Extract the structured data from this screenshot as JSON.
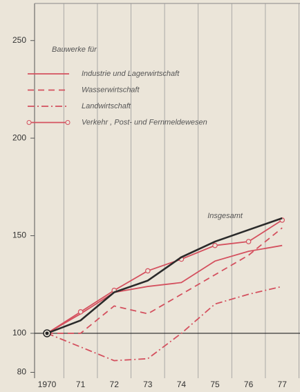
{
  "chart_data": {
    "type": "line",
    "legend_title": "Bauwerke für",
    "categories": [
      "1970",
      "71",
      "72",
      "73",
      "74",
      "75",
      "76",
      "77"
    ],
    "series": [
      {
        "name": "Industrie und Lagerwirtschaft",
        "color": "#d4505e",
        "dash": "solid",
        "values": [
          100,
          110,
          121,
          124,
          126,
          137,
          142,
          145
        ]
      },
      {
        "name": "Wasserwirtschaft",
        "color": "#d4505e",
        "dash": "dashed",
        "values": [
          100,
          100,
          114,
          110,
          120,
          130,
          140,
          154
        ]
      },
      {
        "name": "Landwirtschaft",
        "color": "#d4505e",
        "dash": "dashdot",
        "values": [
          100,
          93,
          86,
          87,
          100,
          115,
          120,
          124
        ]
      },
      {
        "name": "Verkehr , Post- und Fernmeldewesen",
        "color": "#d4505e",
        "dash": "solid",
        "marker": "circle",
        "values": [
          100,
          111,
          122,
          132,
          138,
          145,
          147,
          158
        ]
      },
      {
        "name": "Insgesamt",
        "color": "#2a2a2a",
        "dash": "solid",
        "legend": false,
        "values": [
          100,
          106.6,
          121,
          127,
          139,
          147,
          153,
          159
        ]
      }
    ],
    "ylim": [
      77,
      269
    ],
    "yticks": [
      80,
      100,
      150,
      200,
      250
    ],
    "baseline": 100
  }
}
